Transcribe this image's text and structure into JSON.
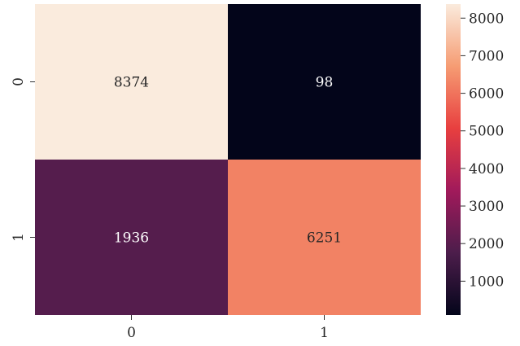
{
  "chart_data": {
    "type": "heatmap",
    "x_categories": [
      "0",
      "1"
    ],
    "y_categories": [
      "0",
      "1"
    ],
    "values": [
      [
        8374,
        98
      ],
      [
        1936,
        6251
      ]
    ],
    "value_labels": [
      [
        "8374",
        "98"
      ],
      [
        "1936",
        "6251"
      ]
    ],
    "colorbar": {
      "min": 98,
      "max": 8374,
      "ticks": [
        1000,
        2000,
        3000,
        4000,
        5000,
        6000,
        7000,
        8000
      ],
      "tick_labels": [
        "1000",
        "2000",
        "3000",
        "4000",
        "5000",
        "6000",
        "7000",
        "8000"
      ]
    },
    "colormap": {
      "name": "rocket",
      "stops": [
        "#03051a",
        "#4c1d4b",
        "#a11a5b",
        "#e83f3f",
        "#f69c73",
        "#faebdd"
      ]
    },
    "title": "",
    "xlabel": "",
    "ylabel": ""
  }
}
